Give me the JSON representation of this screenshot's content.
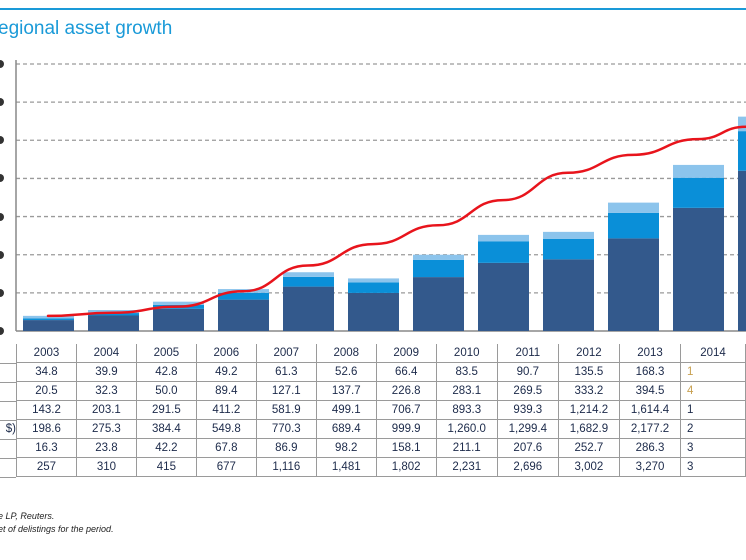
{
  "title": "egional asset growth",
  "row_label_fragments": [
    "",
    "",
    "",
    "",
    "$)",
    "",
    ""
  ],
  "table": {
    "years": [
      "2003",
      "2004",
      "2005",
      "2006",
      "2007",
      "2008",
      "2009",
      "2010",
      "2011",
      "2012",
      "2013",
      "2014"
    ],
    "rows": [
      [
        "34.8",
        "39.9",
        "42.8",
        "49.2",
        "61.3",
        "52.6",
        "66.4",
        "83.5",
        "90.7",
        "135.5",
        "168.3",
        "1"
      ],
      [
        "20.5",
        "32.3",
        "50.0",
        "89.4",
        "127.1",
        "137.7",
        "226.8",
        "283.1",
        "269.5",
        "333.2",
        "394.5",
        "4"
      ],
      [
        "143.2",
        "203.1",
        "291.5",
        "411.2",
        "581.9",
        "499.1",
        "706.7",
        "893.3",
        "939.3",
        "1,214.2",
        "1,614.4",
        "1"
      ],
      [
        "198.6",
        "275.3",
        "384.4",
        "549.8",
        "770.3",
        "689.4",
        "999.9",
        "1,260.0",
        "1,299.4",
        "1,682.9",
        "2,177.2",
        "2"
      ],
      [
        "16.3",
        "23.8",
        "42.2",
        "67.8",
        "86.9",
        "98.2",
        "158.1",
        "211.1",
        "207.6",
        "252.7",
        "286.3",
        "3"
      ],
      [
        "257",
        "310",
        "415",
        "677",
        "1,116",
        "1,481",
        "1,802",
        "2,231",
        "2,696",
        "3,002",
        "3,270",
        "3"
      ]
    ]
  },
  "notes": [
    "e LP, Reuters.",
    "et of delistings for the period."
  ],
  "colors": {
    "title": "#1a9ad8",
    "bar_dark": "#33598c",
    "bar_mid": "#0a8fd8",
    "bar_light": "#8cc4ec",
    "line": "#e8141c",
    "grid": "#9a9a9a"
  },
  "chart_data": {
    "type": "bar",
    "stacked": true,
    "title": "egional asset growth",
    "categories": [
      "2003",
      "2004",
      "2005",
      "2006",
      "2007",
      "2008",
      "2009",
      "2010",
      "2011",
      "2012",
      "2013",
      "2014"
    ],
    "series": [
      {
        "name": "row 3 (bottom, dark blue)",
        "values": [
          143.2,
          203.1,
          291.5,
          411.2,
          581.9,
          499.1,
          706.7,
          893.3,
          939.3,
          1214.2,
          1614.4,
          null
        ]
      },
      {
        "name": "row 2 (middle, blue)",
        "values": [
          20.5,
          32.3,
          50.0,
          89.4,
          127.1,
          137.7,
          226.8,
          283.1,
          269.5,
          333.2,
          394.5,
          null
        ]
      },
      {
        "name": "row 1 (top, light blue)",
        "values": [
          34.8,
          39.9,
          42.8,
          49.2,
          61.3,
          52.6,
          66.4,
          83.5,
          90.7,
          135.5,
          168.3,
          null
        ]
      }
    ],
    "line_series": {
      "name": "row 6 (red line, secondary axis)",
      "values": [
        257,
        310,
        415,
        677,
        1116,
        1481,
        1802,
        2231,
        2696,
        3002,
        3270,
        null
      ]
    },
    "totals": [
      198.6,
      275.3,
      384.4,
      549.8,
      770.3,
      689.4,
      999.9,
      1260.0,
      1299.4,
      1682.9,
      2177.2,
      null
    ],
    "ylim": [
      0,
      3500
    ],
    "y_gridlines": [
      0,
      500,
      1000,
      1500,
      2000,
      2500,
      3000,
      3500
    ],
    "y2lim": [
      0,
      4550
    ],
    "grid": true,
    "xlabel": "",
    "ylabel": ""
  }
}
